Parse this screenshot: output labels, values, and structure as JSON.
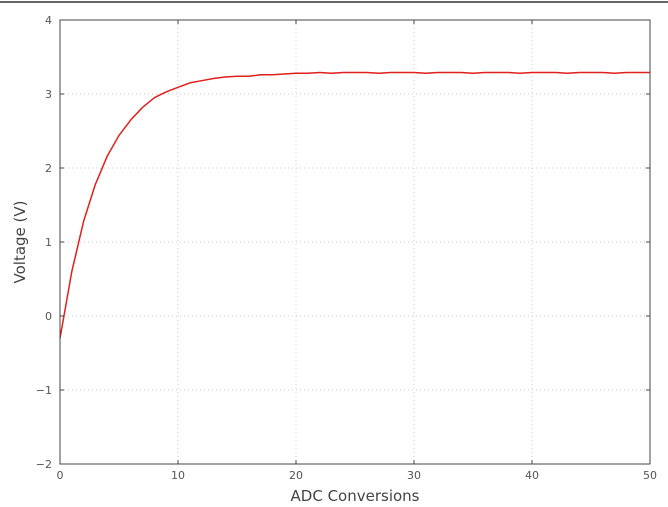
{
  "chart_data": {
    "type": "line",
    "title": "",
    "xlabel": "ADC Conversions",
    "ylabel": "Voltage (V)",
    "xlim": [
      0,
      50
    ],
    "ylim": [
      -2,
      4
    ],
    "grid": true,
    "xticks": [
      0,
      10,
      20,
      30,
      40,
      50
    ],
    "yticks": [
      -2,
      -1,
      0,
      1,
      2,
      3,
      4
    ],
    "xtick_labels": [
      "0",
      "10",
      "20",
      "30",
      "40",
      "50"
    ],
    "ytick_labels": [
      "−2",
      "−1",
      "0",
      "1",
      "2",
      "3",
      "4"
    ],
    "series": [
      {
        "color": "#e0201b",
        "x": [
          0,
          1,
          2,
          3,
          4,
          5,
          6,
          7,
          8,
          9,
          10,
          11,
          12,
          13,
          14,
          15,
          16,
          17,
          18,
          19,
          20,
          21,
          22,
          23,
          24,
          25,
          26,
          27,
          28,
          29,
          30,
          31,
          32,
          33,
          34,
          35,
          36,
          37,
          38,
          39,
          40,
          41,
          42,
          43,
          44,
          45,
          46,
          47,
          48,
          49,
          50
        ],
        "y": [
          -0.3,
          0.6,
          1.28,
          1.78,
          2.16,
          2.44,
          2.65,
          2.82,
          2.95,
          3.03,
          3.09,
          3.15,
          3.18,
          3.21,
          3.23,
          3.24,
          3.24,
          3.26,
          3.26,
          3.27,
          3.28,
          3.28,
          3.29,
          3.28,
          3.29,
          3.29,
          3.29,
          3.28,
          3.29,
          3.29,
          3.29,
          3.28,
          3.29,
          3.29,
          3.29,
          3.28,
          3.29,
          3.29,
          3.29,
          3.28,
          3.29,
          3.29,
          3.29,
          3.28,
          3.29,
          3.29,
          3.29,
          3.28,
          3.29,
          3.29,
          3.29
        ]
      }
    ]
  }
}
